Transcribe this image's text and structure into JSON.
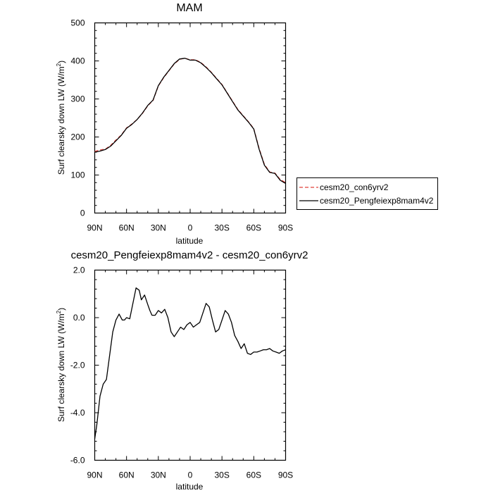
{
  "chart_data": [
    {
      "type": "line",
      "title": "MAM",
      "xlabel": "latitude",
      "ylabel": "Surf clearsky down LW (W/m",
      "ylabel_sup": "2",
      "ylabel_close": ")",
      "x_ticks": [
        "90N",
        "60N",
        "30N",
        "0",
        "30S",
        "60S",
        "90S"
      ],
      "y_ticks": [
        "0",
        "100",
        "200",
        "300",
        "400",
        "500"
      ],
      "xlim": [
        90,
        -90
      ],
      "ylim": [
        0,
        500
      ],
      "legend_position": "right",
      "series": [
        {
          "name": "cesm20_con6yrv2",
          "style": "dashed",
          "color": "#e0403a",
          "x": [
            90,
            85,
            80,
            75,
            70,
            65,
            60,
            55,
            50,
            45,
            40,
            35,
            30,
            25,
            20,
            15,
            10,
            5,
            0,
            -5,
            -10,
            -15,
            -20,
            -25,
            -30,
            -35,
            -40,
            -45,
            -50,
            -55,
            -60,
            -65,
            -70,
            -75,
            -80,
            -85,
            -90
          ],
          "values": [
            162,
            166,
            168,
            178,
            192,
            205,
            224,
            234,
            246,
            262,
            282,
            296,
            334,
            356,
            374,
            392,
            404,
            407,
            403,
            403,
            396,
            384,
            370,
            354,
            338,
            316,
            294,
            272,
            256,
            240,
            222,
            170,
            128,
            108,
            105,
            88,
            80
          ]
        },
        {
          "name": "cesm20_Pengfeiexp8mam4v2",
          "style": "solid",
          "color": "#000000",
          "x": [
            90,
            85,
            80,
            75,
            70,
            65,
            60,
            55,
            50,
            45,
            40,
            35,
            30,
            25,
            20,
            15,
            10,
            5,
            0,
            -5,
            -10,
            -15,
            -20,
            -25,
            -30,
            -35,
            -40,
            -45,
            -50,
            -55,
            -60,
            -65,
            -70,
            -75,
            -80,
            -85,
            -90
          ],
          "values": [
            160,
            163,
            167,
            176,
            190,
            204,
            223,
            233,
            246,
            263,
            283,
            297,
            335,
            357,
            375,
            393,
            405,
            407,
            402,
            402,
            395,
            383,
            369,
            353,
            337,
            315,
            293,
            271,
            255,
            239,
            221,
            168,
            126,
            107,
            104,
            86,
            78
          ]
        }
      ]
    },
    {
      "type": "line",
      "title": "cesm20_Pengfeiexp8mam4v2 - cesm20_con6yrv2",
      "xlabel": "latitude",
      "ylabel": "Surf clearsky down LW (W/m",
      "ylabel_sup": "2",
      "ylabel_close": ")",
      "x_ticks": [
        "90N",
        "60N",
        "30N",
        "0",
        "30S",
        "60S",
        "90S"
      ],
      "y_ticks": [
        "2.0",
        "0.0",
        "-2.0",
        "-4.0",
        "-6.0"
      ],
      "xlim": [
        90,
        -90
      ],
      "ylim": [
        -6,
        2
      ],
      "series": [
        {
          "color": "#000000",
          "style": "solid",
          "x": [
            90,
            88,
            85,
            82,
            79,
            76,
            73,
            70,
            67,
            64,
            62,
            60,
            57,
            54,
            51,
            48,
            46,
            43,
            40,
            38,
            36,
            33,
            30,
            27,
            24,
            21,
            18,
            15,
            12,
            9,
            6,
            3,
            0,
            -3,
            -6,
            -9,
            -12,
            -15,
            -18,
            -21,
            -24,
            -27,
            -30,
            -33,
            -36,
            -39,
            -42,
            -45,
            -48,
            -51,
            -54,
            -57,
            -60,
            -63,
            -66,
            -69,
            -72,
            -75,
            -78,
            -81,
            -84,
            -87,
            -90
          ],
          "values": [
            -5.1,
            -4.5,
            -3.3,
            -2.8,
            -2.6,
            -1.6,
            -0.6,
            -0.1,
            0.15,
            -0.1,
            -0.1,
            0.0,
            -0.05,
            0.6,
            1.25,
            1.15,
            0.75,
            0.95,
            0.55,
            0.3,
            0.1,
            0.1,
            0.3,
            0.2,
            0.35,
            0.0,
            -0.6,
            -0.8,
            -0.6,
            -0.4,
            -0.5,
            -0.3,
            -0.2,
            -0.4,
            -0.3,
            -0.2,
            0.2,
            0.6,
            0.45,
            -0.1,
            -0.6,
            -0.5,
            -0.1,
            0.3,
            0.15,
            -0.2,
            -0.75,
            -1.0,
            -1.3,
            -1.1,
            -1.5,
            -1.55,
            -1.45,
            -1.45,
            -1.4,
            -1.35,
            -1.35,
            -1.3,
            -1.4,
            -1.45,
            -1.5,
            -1.4,
            -1.35
          ]
        }
      ]
    }
  ]
}
